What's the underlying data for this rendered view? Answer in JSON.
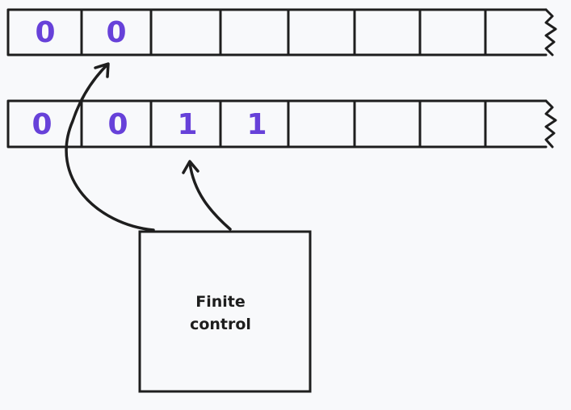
{
  "colors": {
    "background": "#f8f9fb",
    "stroke": "#1e1e1e",
    "symbol": "#6741d9"
  },
  "tapes": [
    {
      "cells": [
        "0",
        "0",
        "",
        "",
        "",
        "",
        "",
        ""
      ]
    },
    {
      "cells": [
        "0",
        "0",
        "1",
        "1",
        "",
        "",
        "",
        ""
      ]
    }
  ],
  "finite_control": {
    "line1": "Finite",
    "line2": "control"
  }
}
